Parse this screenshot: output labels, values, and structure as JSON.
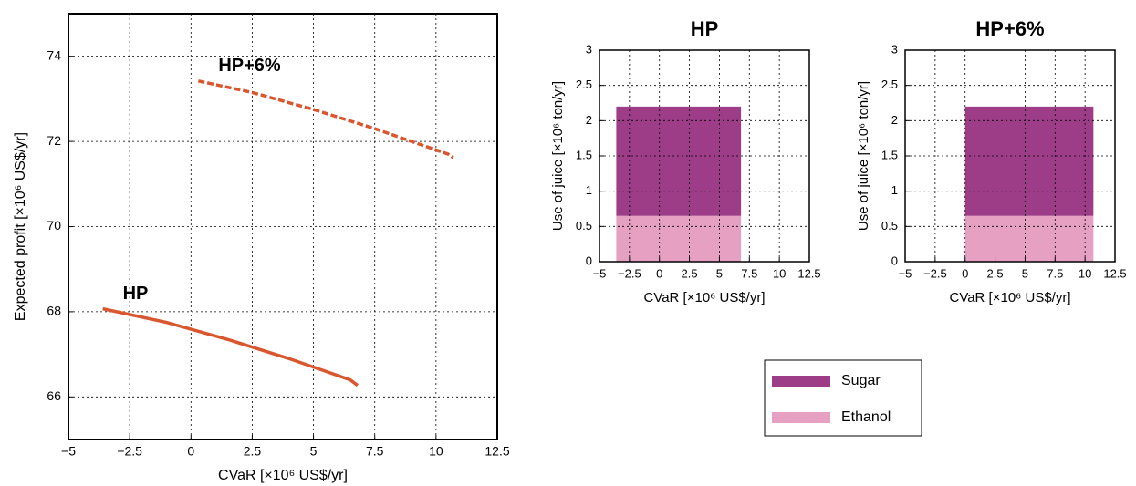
{
  "chart_data": [
    {
      "type": "line",
      "x_label": "CVaR [×10⁶ US$/yr]",
      "y_label": "Expected profit [×10⁶ US$/yr]",
      "xlim": [
        -5,
        12.5
      ],
      "ylim": [
        65,
        75
      ],
      "xticks": [
        {
          "value": -5,
          "label": "−5"
        },
        {
          "value": -2.5,
          "label": "−2.5"
        },
        0,
        2.5,
        5,
        7.5,
        10,
        12.5
      ],
      "yticks": [
        66,
        68,
        70,
        72,
        74
      ],
      "grid": true,
      "series": [
        {
          "name": "HP",
          "color": "#d9572f",
          "dashed": false,
          "x": [
            -3.6,
            -1,
            1.5,
            4,
            5.5,
            6.5,
            6.8
          ],
          "values": [
            68.07,
            67.75,
            67.35,
            66.9,
            66.6,
            66.4,
            66.27
          ]
        },
        {
          "name": "HP+6%",
          "color": "#d9572f",
          "dashed": true,
          "x": [
            0.3,
            2.5,
            5,
            7.5,
            9.5,
            10.5,
            10.7
          ],
          "values": [
            73.42,
            73.15,
            72.75,
            72.3,
            71.9,
            71.7,
            71.62
          ]
        }
      ]
    },
    {
      "type": "stacked_span",
      "title": "HP",
      "x_label": "CVaR [×10⁶ US$/yr]",
      "y_label": "Use of juice [×10⁶ ton/yr]",
      "xlim": [
        -5,
        12.5
      ],
      "ylim": [
        0,
        3
      ],
      "xticks": [
        {
          "value": -5,
          "label": "−5"
        },
        {
          "value": -2.5,
          "label": "−2.5"
        },
        0,
        2.5,
        5,
        7.5,
        10,
        12.5
      ],
      "yticks": [
        0,
        0.5,
        1,
        1.5,
        2,
        2.5,
        3
      ],
      "grid": true,
      "x_range": [
        -3.6,
        6.8
      ],
      "series": [
        {
          "name": "Ethanol",
          "color": "#e6a1c2",
          "values": [
            0.65
          ]
        },
        {
          "name": "Sugar",
          "color": "#9e3d87",
          "values": [
            1.55
          ]
        }
      ]
    },
    {
      "type": "stacked_span",
      "title": "HP+6%",
      "x_label": "CVaR [×10⁶ US$/yr]",
      "y_label": "Use of juice [×10⁶ ton/yr]",
      "xlim": [
        -5,
        12.5
      ],
      "ylim": [
        0,
        3
      ],
      "xticks": [
        {
          "value": -5,
          "label": "−5"
        },
        {
          "value": -2.5,
          "label": "−2.5"
        },
        0,
        2.5,
        5,
        7.5,
        10,
        12.5
      ],
      "yticks": [
        0,
        0.5,
        1,
        1.5,
        2,
        2.5,
        3
      ],
      "grid": true,
      "x_range": [
        0,
        10.7
      ],
      "series": [
        {
          "name": "Ethanol",
          "color": "#e6a1c2",
          "values": [
            0.65
          ]
        },
        {
          "name": "Sugar",
          "color": "#9e3d87",
          "values": [
            1.55
          ]
        }
      ]
    }
  ]
}
